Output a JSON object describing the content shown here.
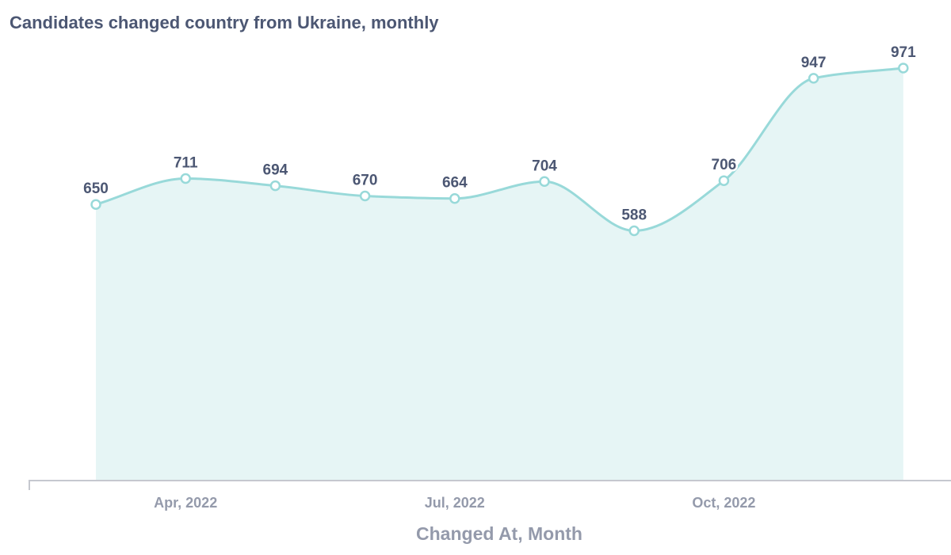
{
  "colors": {
    "series": "#98d9d9",
    "area": "#e6f5f5",
    "text": "#4c5773",
    "axis_text": "#949aab",
    "axis_line": "#c5c8cf"
  },
  "chart_data": {
    "type": "area",
    "title": "Candidates changed country from Ukraine, monthly",
    "xlabel": "Changed At, Month",
    "ylabel": "",
    "x": [
      "2022-03",
      "2022-04",
      "2022-05",
      "2022-06",
      "2022-07",
      "2022-08",
      "2022-09",
      "2022-10",
      "2022-11",
      "2022-12"
    ],
    "series": [
      {
        "values": [
          650,
          711,
          694,
          670,
          664,
          704,
          588,
          706,
          947,
          971
        ]
      }
    ],
    "x_ticks": [
      {
        "x": "2022-04",
        "label": "Apr, 2022"
      },
      {
        "x": "2022-07",
        "label": "Jul, 2022"
      },
      {
        "x": "2022-10",
        "label": "Oct, 2022"
      }
    ],
    "ylim": [
      0,
      971
    ],
    "grid": false,
    "legend": "none",
    "data_labels": true
  }
}
